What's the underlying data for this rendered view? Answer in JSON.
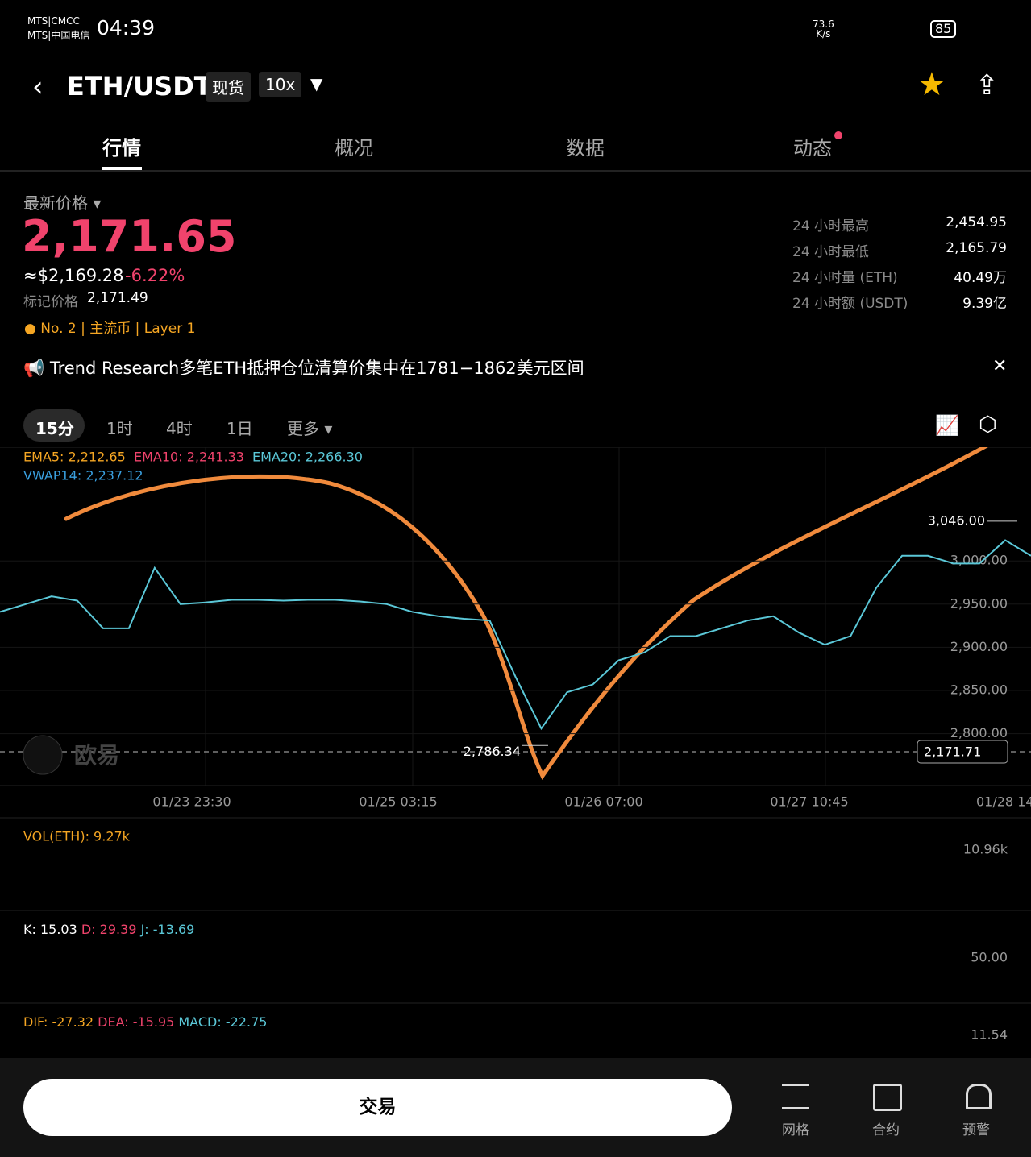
{
  "status_bar": {
    "carrier_1": "MTS|CMCC",
    "carrier_2": "MTS|中国电信",
    "time": "04:39",
    "speed": "73.6",
    "speed_unit": "K/s",
    "battery": "85"
  },
  "header": {
    "pair": "ETH/USDT",
    "tag_1": "现货",
    "tag_2": "10x"
  },
  "tabs": [
    "行情",
    "概况",
    "数据",
    "动态"
  ],
  "price": {
    "label": "最新价格",
    "last": "2,171.65",
    "usd": "≈$2,169.28",
    "change": "-6.22%",
    "mark_label": "标记价格",
    "mark": "2,171.49",
    "rank": "No. 2",
    "tag_1": "主流币",
    "tag_2": "Layer 1"
  },
  "stats": [
    [
      "24 小时最高",
      "2,454.95"
    ],
    [
      "24 小时最低",
      "2,165.79"
    ],
    [
      "24 小时量 (ETH)",
      "40.49万"
    ],
    [
      "24 小时额 (USDT)",
      "9.39亿"
    ]
  ],
  "news": "Trend Research多笔ETH抵押仓位清算价集中在1781−1862美元区间",
  "intervals": [
    "15分",
    "1时",
    "4时",
    "1日",
    "更多"
  ],
  "chart": {
    "indicators": [
      "EMA5: 2,212.65",
      "EMA10: 2,241.33",
      "EMA20: 2,266.30",
      "VWAP14: 2,237.12"
    ],
    "ylim": [
      2740,
      3127
    ],
    "yticks": [
      {
        "value": 2800,
        "label": "2,800.00"
      },
      {
        "value": 2850,
        "label": "2,850.00"
      },
      {
        "value": 2900,
        "label": "2,900.00"
      },
      {
        "value": 2950,
        "label": "2,950.00"
      },
      {
        "value": 3000,
        "label": "3,000.00"
      }
    ],
    "high": {
      "value": 3046,
      "label": "3,046.00"
    },
    "low": {
      "value": 2786.34,
      "label": "2,786.34"
    },
    "current_label": "2,171.71",
    "watermark": "欧易",
    "x_labels": [
      "01/23 23:30",
      "01/25 03:15",
      "01/26 07:00",
      "01/27 10:45",
      "01/28 14"
    ],
    "price": {
      "color": "#5bc8d8",
      "values": [
        2941,
        2950,
        2959,
        2954,
        2922,
        2922,
        2992,
        2950,
        2952,
        2955,
        2955,
        2954,
        2955,
        2955,
        2953,
        2950,
        2941,
        2936,
        2933,
        2931,
        2866,
        2806,
        2848,
        2857,
        2885,
        2894,
        2913,
        2913,
        2922,
        2931,
        2936,
        2917,
        2903,
        2913,
        2969,
        3006,
        3006,
        2997,
        2997,
        3024,
        3006
      ]
    }
  },
  "volume": {
    "label": "VOL(ETH): 9.27k",
    "max": "10.96k"
  },
  "kdj": {
    "k": "K: 15.03",
    "d": "D: 29.39",
    "j": "J: -13.69",
    "level": "50.00"
  },
  "macd": {
    "dif": "DIF: -27.32",
    "dea": "DEA: -15.95",
    "macd": "MACD: -22.75",
    "level": "11.54"
  },
  "bottom": {
    "trade": "交易",
    "grid": "网格",
    "contract": "合约",
    "alert": "预警"
  }
}
